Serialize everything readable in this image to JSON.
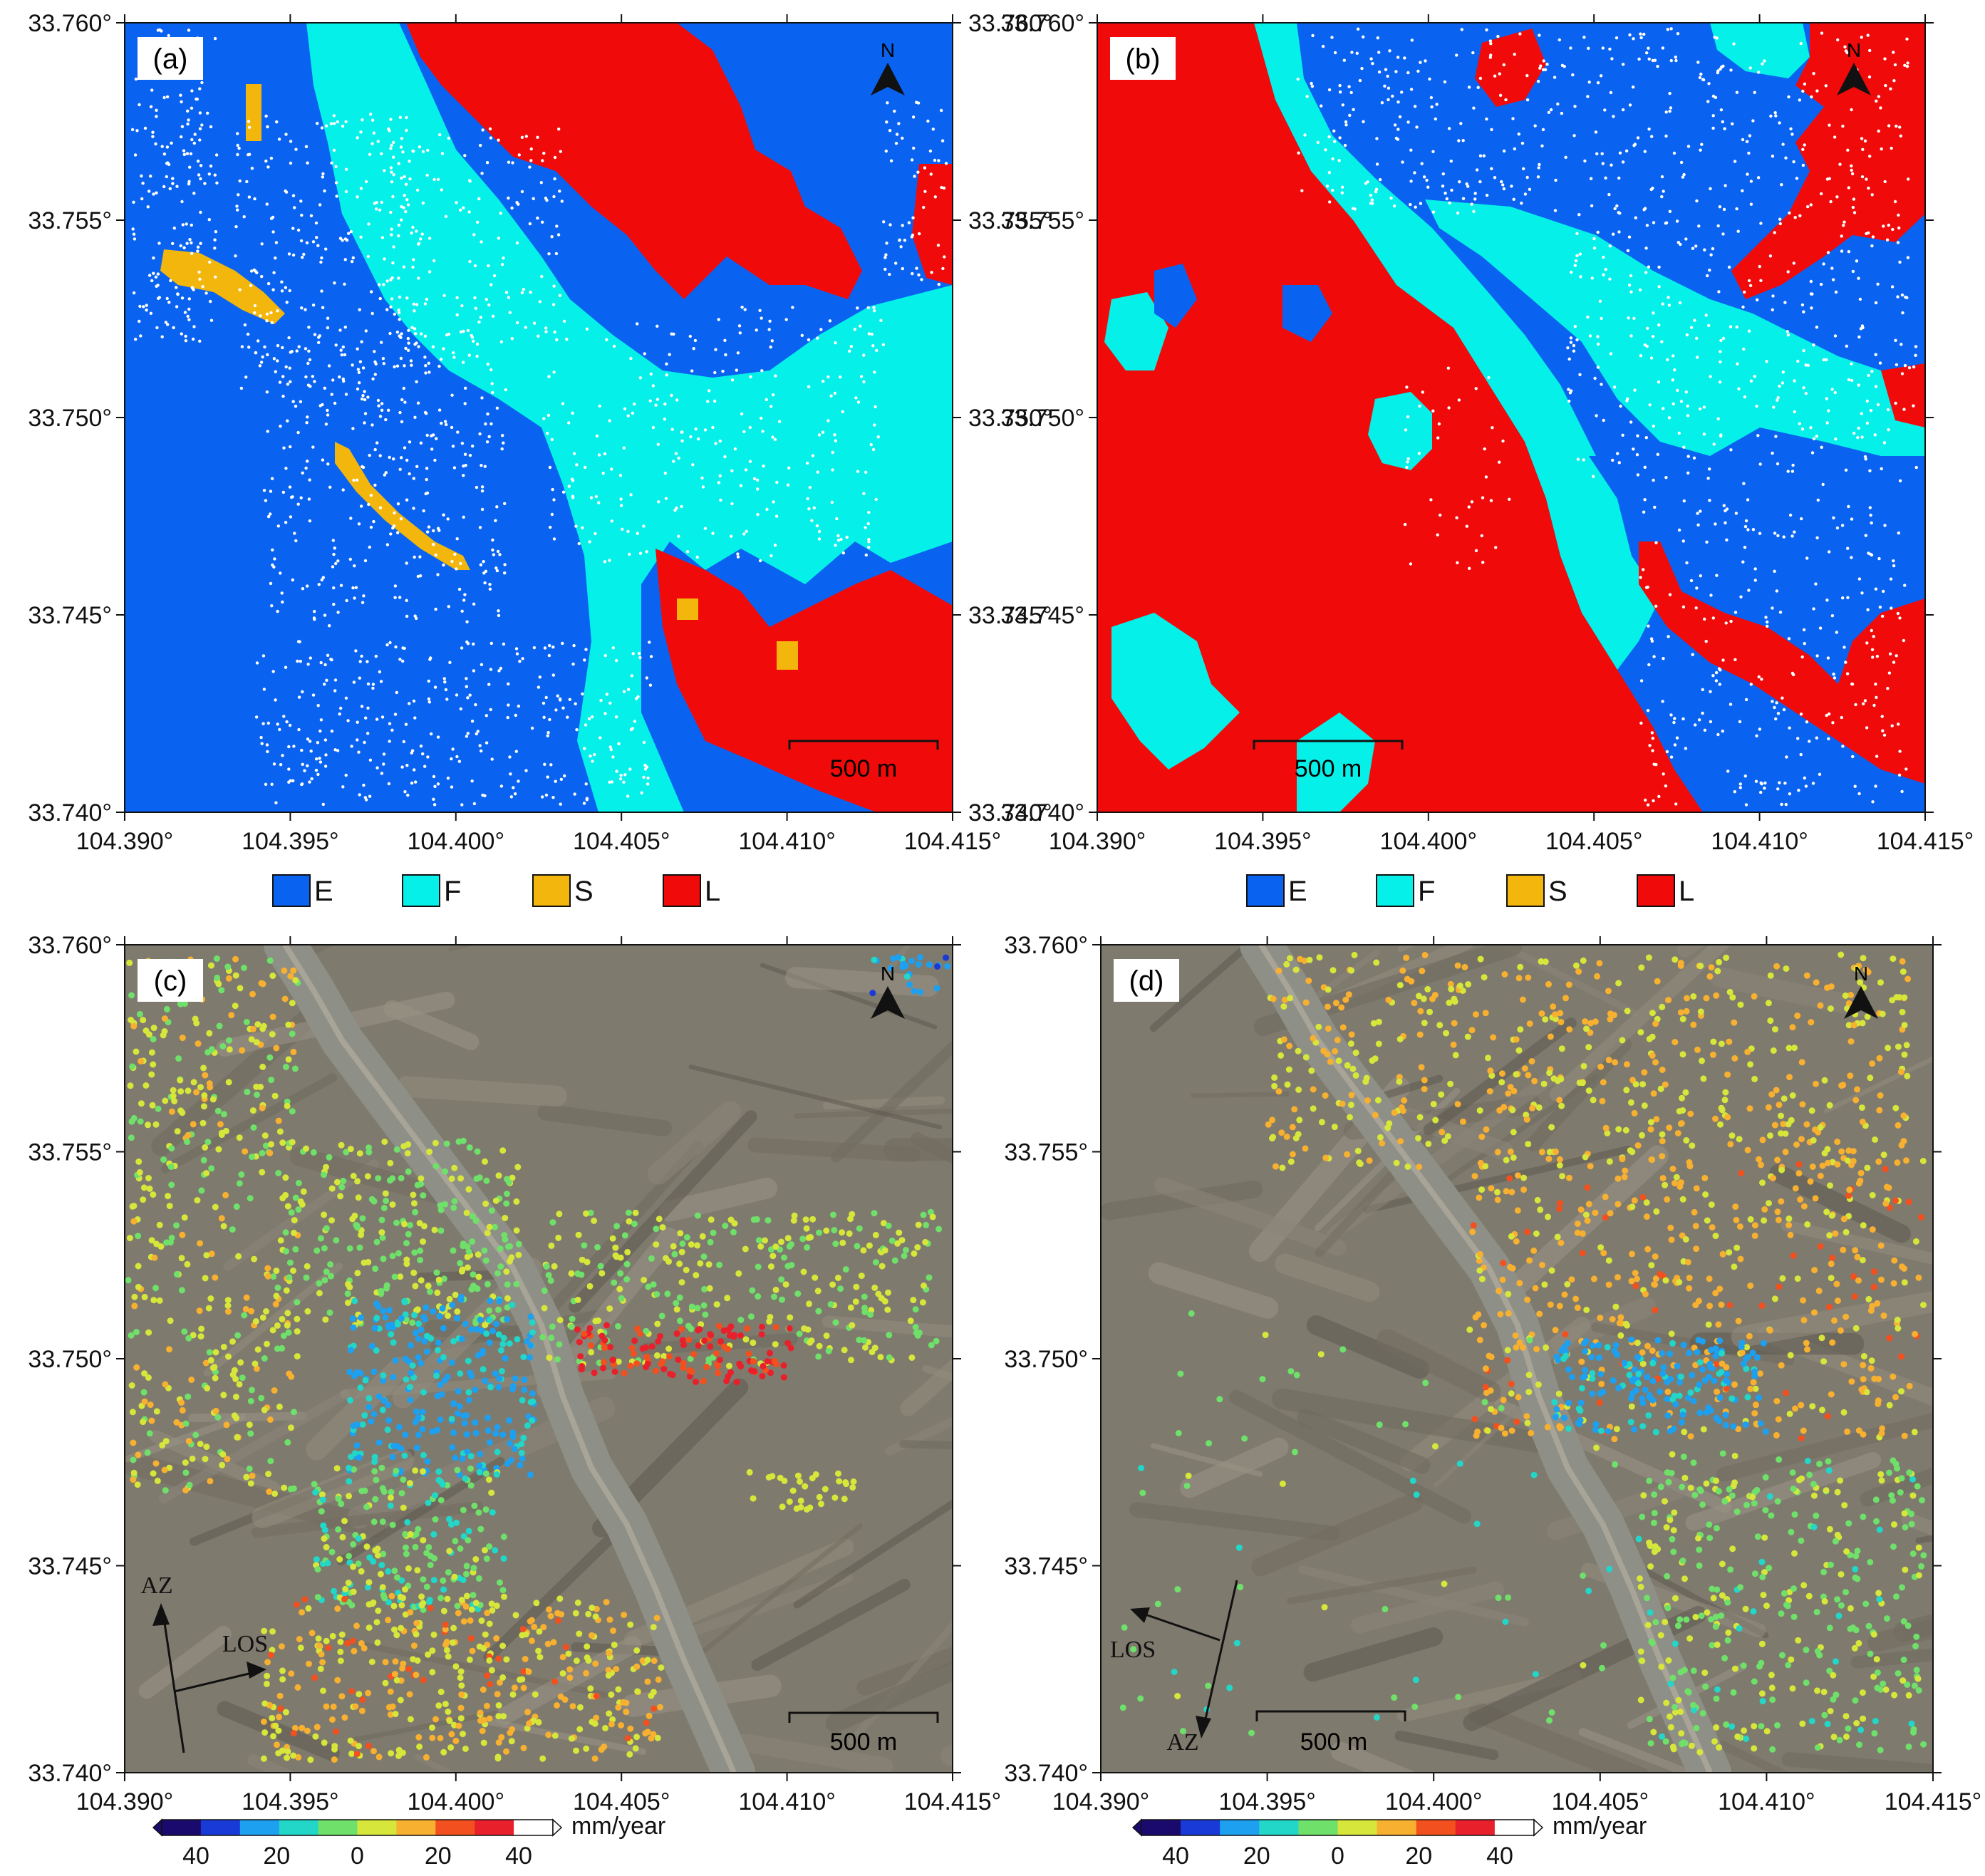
{
  "lat_ticks": [
    "33.760°",
    "33.755°",
    "33.750°",
    "33.745°",
    "33.740°"
  ],
  "lon_ticks": [
    "104.390°",
    "104.395°",
    "104.400°",
    "104.405°",
    "104.410°",
    "104.415°"
  ],
  "panels": {
    "a": {
      "label": "(a)"
    },
    "b": {
      "label": "(b)"
    },
    "c": {
      "label": "(c)"
    },
    "d": {
      "label": "(d)"
    }
  },
  "north_label": "N",
  "scale_bar_label": "500 m",
  "classes": [
    {
      "code": "E",
      "color": "#0a63f0"
    },
    {
      "code": "F",
      "color": "#05f0e9"
    },
    {
      "code": "S",
      "color": "#f3b60d"
    },
    {
      "code": "L",
      "color": "#f00a0a"
    }
  ],
  "colorbar": {
    "ticks": [
      "40",
      "20",
      "0",
      "20",
      "40"
    ],
    "unit": "mm/year",
    "colors": [
      "#1a0a6e",
      "#1a3ad8",
      "#1ea0f0",
      "#22d6c8",
      "#6fe06a",
      "#d6e63a",
      "#f7b030",
      "#f2501e",
      "#e8202c",
      "#ffffff"
    ]
  },
  "vectors": {
    "az": "AZ",
    "los": "LOS"
  },
  "imagery_colors": {
    "terrain": "#7f7a6e",
    "terrain_dark": "#5e5a50",
    "river": "#8e8f86"
  }
}
